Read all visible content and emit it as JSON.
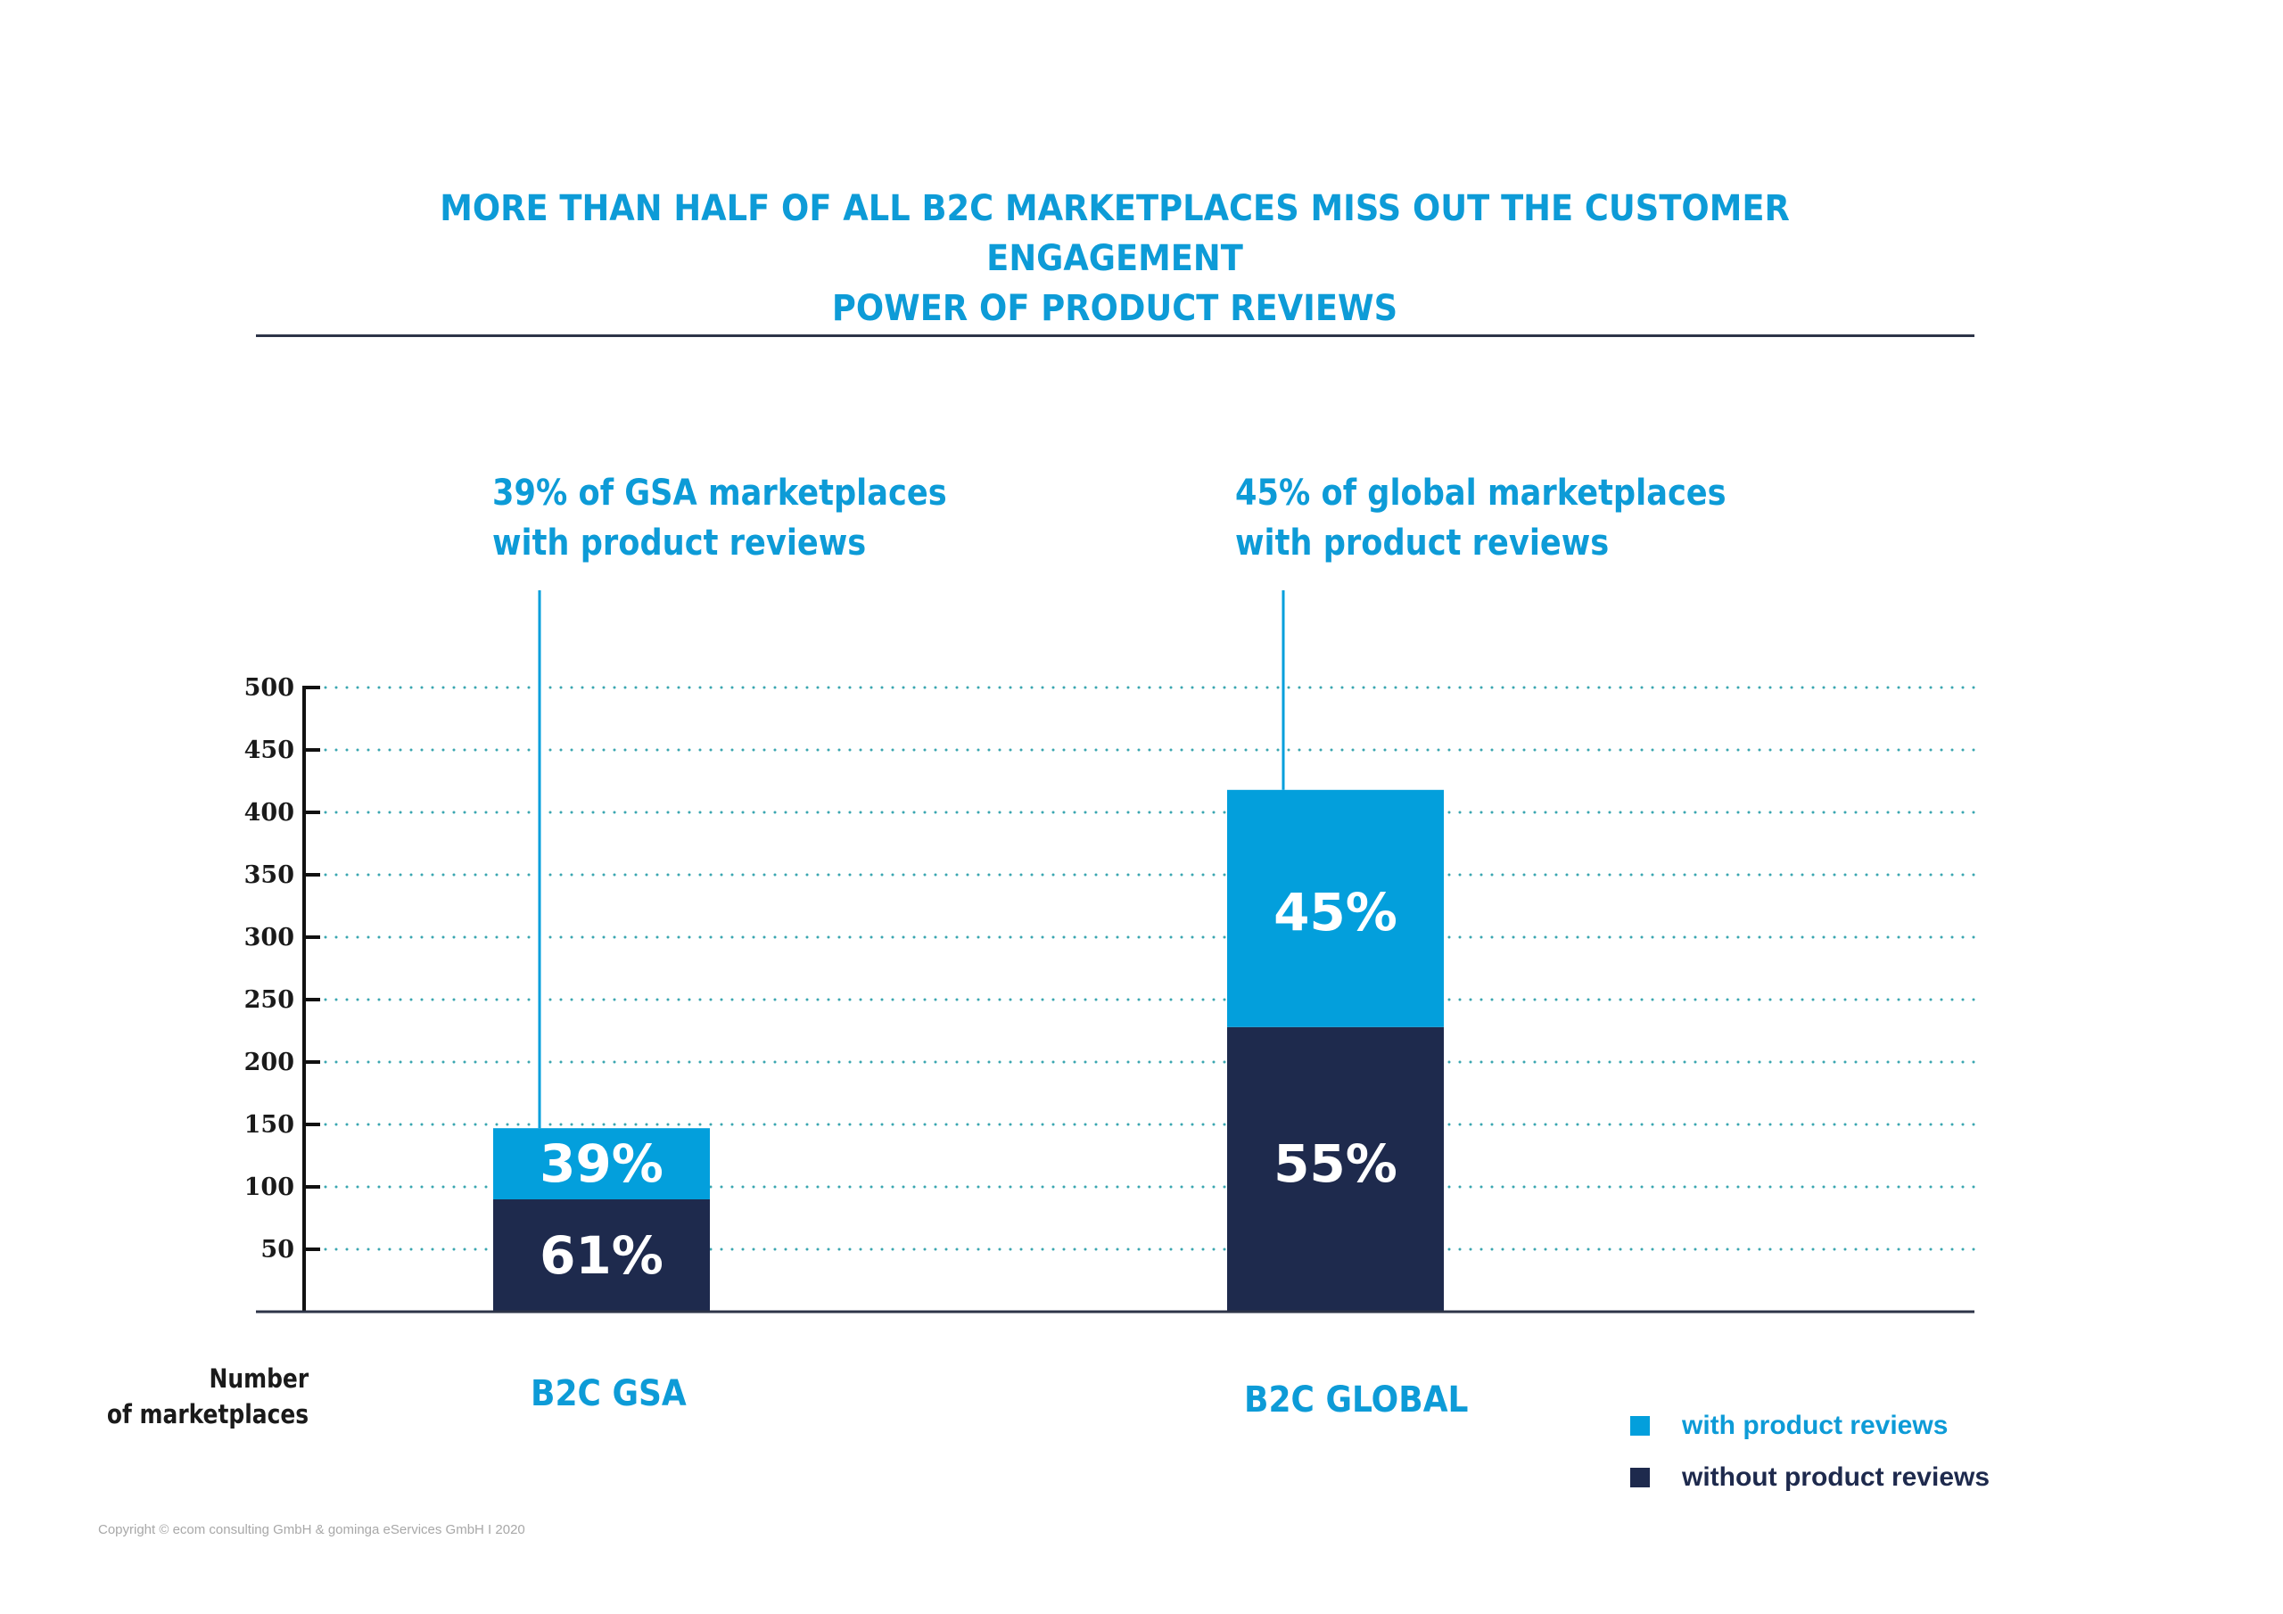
{
  "colors": {
    "accent": "#0d9bd7",
    "with_reviews": "#039fdc",
    "without_reviews": "#1e2a4d",
    "grid": "#3aa6b0",
    "axis": "#111111",
    "text_dark": "#1a1a1a",
    "copyright": "#a8a8a8"
  },
  "title": {
    "line1": "MORE THAN HALF OF ALL B2C MARKETPLACES MISS OUT THE CUSTOMER ENGAGEMENT",
    "line2": "POWER OF PRODUCT REVIEWS"
  },
  "annotations": [
    {
      "line1": "39% of GSA marketplaces",
      "line2": "with product reviews"
    },
    {
      "line1": "45% of global marketplaces",
      "line2": "with product reviews"
    }
  ],
  "copyright": "Copyright © ecom consulting GmbH & gominga eServices GmbH I 2020",
  "chart_data": {
    "type": "bar",
    "stacked": true,
    "title": "MORE THAN HALF OF ALL B2C MARKETPLACES MISS OUT THE CUSTOMER ENGAGEMENT POWER OF PRODUCT REVIEWS",
    "xlabel": "",
    "ylabel": "Number of marketplaces",
    "ylabel_lines": [
      "Number",
      "of marketplaces"
    ],
    "ylim": [
      0,
      500
    ],
    "yticks": [
      50,
      100,
      150,
      200,
      250,
      300,
      350,
      400,
      450,
      500
    ],
    "grid": true,
    "grid_style": "dotted",
    "categories": [
      "B2C GSA",
      "B2C GLOBAL"
    ],
    "series": [
      {
        "name": "without product reviews",
        "values": [
          90,
          228
        ],
        "labels": [
          "61%",
          "55%"
        ]
      },
      {
        "name": "with product reviews",
        "values": [
          57,
          190
        ],
        "labels": [
          "39%",
          "45%"
        ]
      }
    ],
    "totals": [
      147,
      418
    ],
    "legend": {
      "position": "bottom-right",
      "entries": [
        "with product reviews",
        "without product reviews"
      ]
    }
  }
}
